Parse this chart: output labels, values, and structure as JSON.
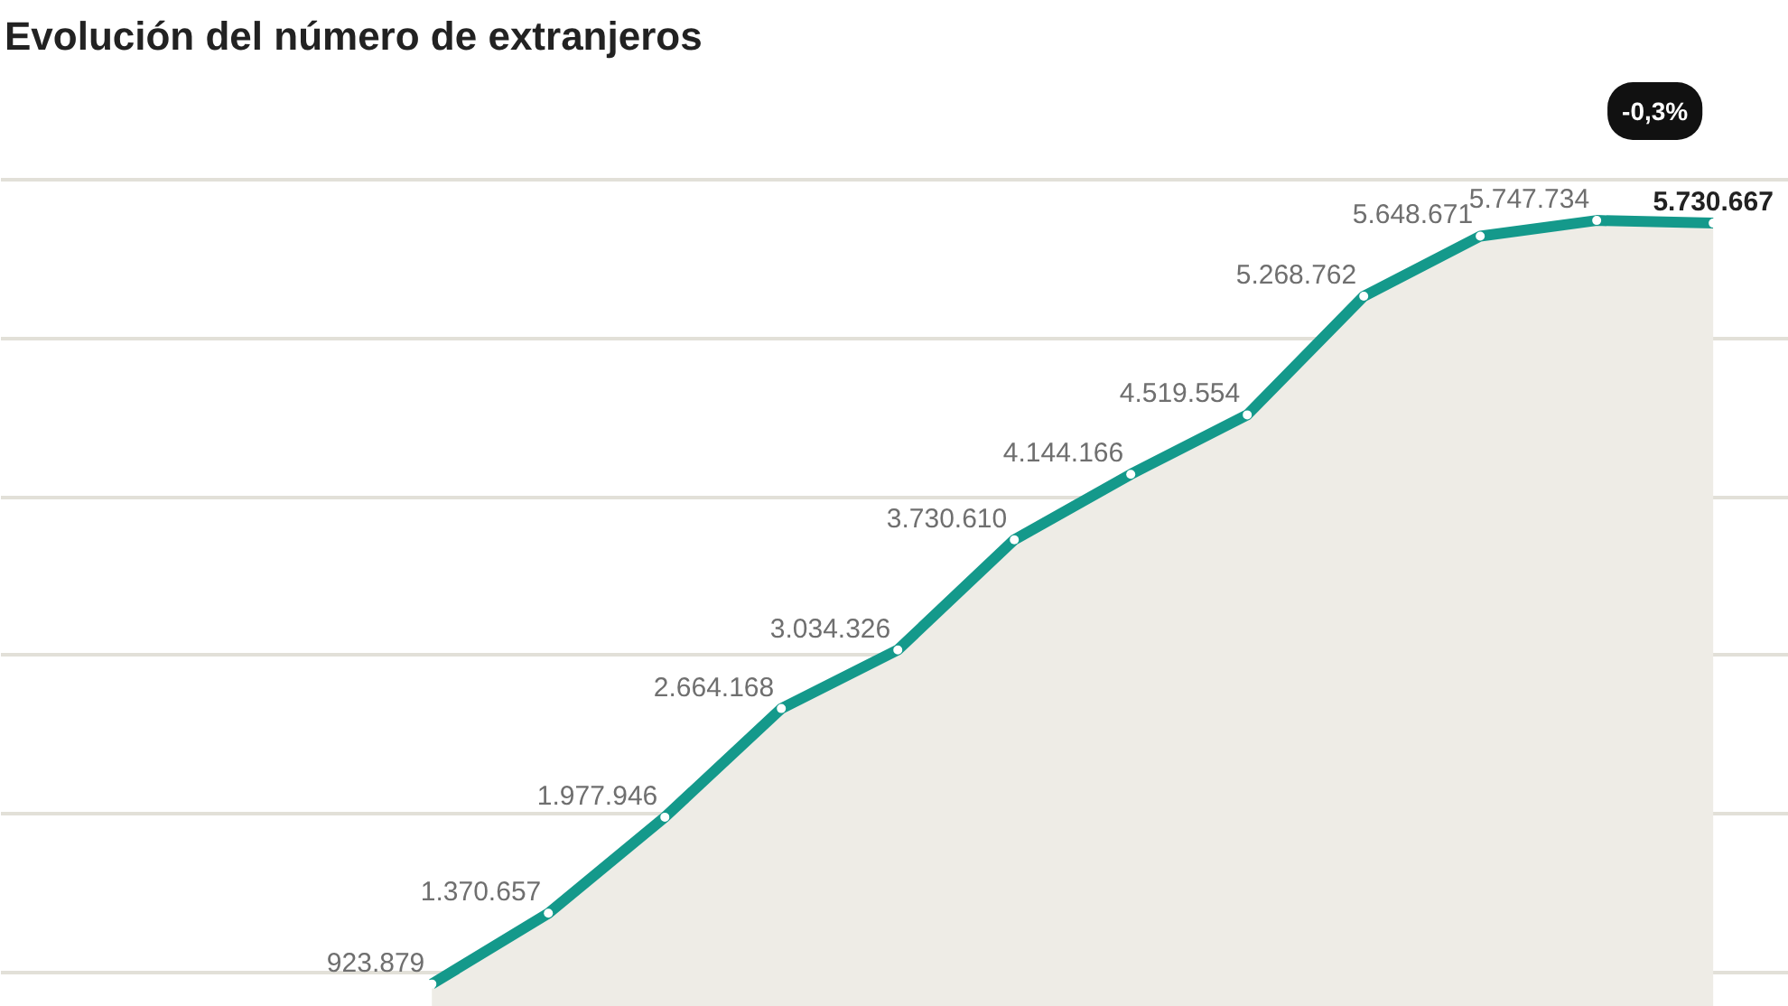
{
  "chart_data": {
    "type": "area",
    "title": "Evolución del número de extranjeros",
    "categories": [
      null,
      null,
      null,
      null,
      null,
      null,
      null,
      null,
      null,
      null,
      null,
      null
    ],
    "series": [
      {
        "color": "#14998b",
        "values": [
          923879,
          1370657,
          1977946,
          2664168,
          3034326,
          3730610,
          4144166,
          4519554,
          5268762,
          5648671,
          5747734,
          5730667
        ],
        "value_labels": [
          "923.879",
          "1.370.657",
          "1.977.946",
          "2.664.168",
          "3.034.326",
          "3.730.610",
          "4.144.166",
          "4.519.554",
          "5.268.762",
          "5.648.671",
          "5.747.734",
          "5.730.667"
        ]
      }
    ],
    "tick_labels": false,
    "grid": "y",
    "marker": "circle",
    "annotations": [
      "-0,3%"
    ]
  }
}
